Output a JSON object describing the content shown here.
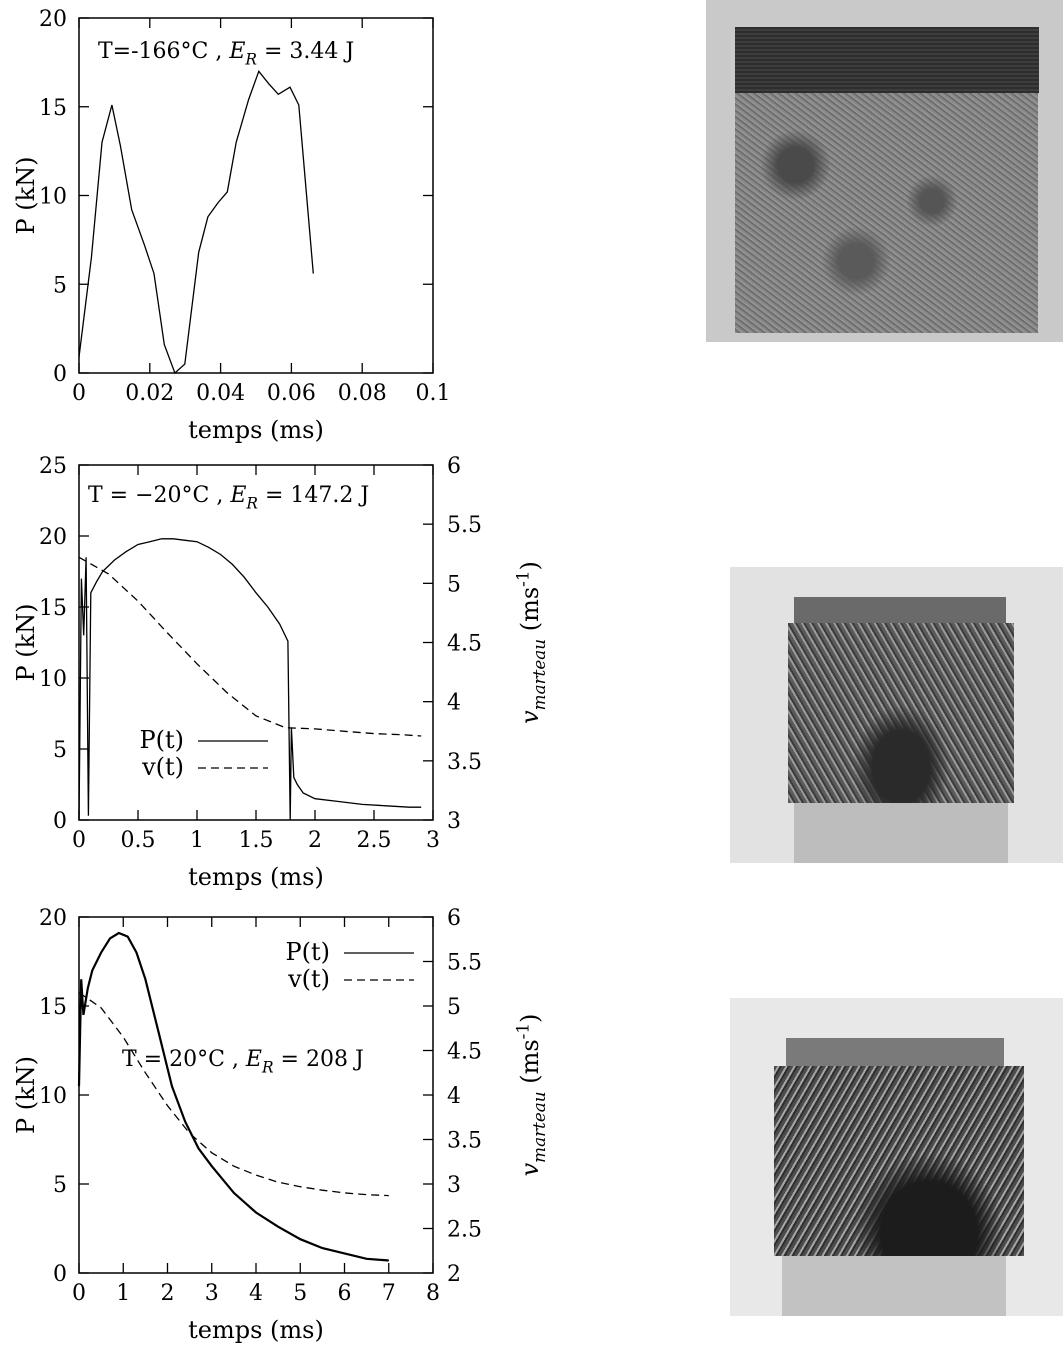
{
  "chart_data": [
    {
      "type": "line",
      "annotation": "T=-166°C , E_R = 3.44 J",
      "xlabel": "temps (ms)",
      "ylabel": "P (kN)",
      "y2label": "",
      "xlim": [
        0,
        0.1
      ],
      "ylim": [
        0,
        20
      ],
      "xticks": [
        "0",
        "0.02",
        "0.04",
        "0.06",
        "0.08",
        "0.1"
      ],
      "yticks": [
        "0",
        "5",
        "10",
        "15",
        "20"
      ],
      "series": [
        {
          "axis": "left",
          "style": "solid",
          "x": [
            0,
            0.0035,
            0.0065,
            0.0093,
            0.0117,
            0.0149,
            0.0185,
            0.0212,
            0.0241,
            0.0271,
            0.0299,
            0.0338,
            0.0364,
            0.0393,
            0.0419,
            0.0444,
            0.0479,
            0.0508,
            0.0536,
            0.0563,
            0.0596,
            0.0621,
            0.0662
          ],
          "y": [
            0.9,
            6.5,
            13.0,
            15.1,
            12.8,
            9.2,
            7.2,
            5.6,
            1.6,
            0.0,
            0.5,
            6.8,
            8.8,
            9.6,
            10.2,
            13.0,
            15.4,
            17.0,
            16.3,
            15.7,
            16.1,
            15.1,
            5.6
          ]
        }
      ]
    },
    {
      "type": "line",
      "annotation": "T = −20°C , E_R = 147.2 J",
      "xlabel": "temps (ms)",
      "ylabel": "P (kN)",
      "y2label": "v_marteau (ms^-1)",
      "xlim": [
        0,
        3
      ],
      "ylim": [
        0,
        25
      ],
      "y2lim": [
        3,
        6
      ],
      "xticks": [
        "0",
        "0.5",
        "1",
        "1.5",
        "2",
        "2.5",
        "3"
      ],
      "yticks": [
        "0",
        "5",
        "10",
        "15",
        "20",
        "25"
      ],
      "y2ticks": [
        "3",
        "3.5",
        "4",
        "4.5",
        "5",
        "5.5",
        "6"
      ],
      "legend": "bottom-left",
      "series": [
        {
          "name": "P(t)",
          "axis": "left",
          "style": "solid",
          "x": [
            0,
            0.02,
            0.04,
            0.06,
            0.08,
            0.1,
            0.15,
            0.2,
            0.3,
            0.4,
            0.5,
            0.6,
            0.7,
            0.8,
            0.9,
            1.0,
            1.1,
            1.2,
            1.3,
            1.4,
            1.5,
            1.6,
            1.7,
            1.77,
            1.79,
            1.8,
            1.82,
            1.85,
            1.9,
            2.0,
            2.2,
            2.4,
            2.6,
            2.8,
            2.9
          ],
          "y": [
            0.0,
            17.0,
            13.0,
            18.5,
            0.3,
            16.0,
            16.8,
            17.5,
            18.3,
            18.9,
            19.4,
            19.6,
            19.8,
            19.8,
            19.7,
            19.6,
            19.2,
            18.7,
            18.0,
            17.1,
            16.0,
            15.0,
            13.8,
            12.6,
            0.0,
            6.5,
            3.0,
            2.5,
            1.9,
            1.5,
            1.3,
            1.1,
            1.0,
            0.9,
            0.9
          ]
        },
        {
          "name": "v(t)",
          "axis": "right",
          "style": "dashed",
          "x": [
            0,
            0.25,
            0.5,
            0.75,
            1.0,
            1.25,
            1.5,
            1.75,
            2.0,
            2.25,
            2.5,
            2.75,
            2.9
          ],
          "y": [
            5.22,
            5.08,
            4.85,
            4.58,
            4.32,
            4.08,
            3.88,
            3.78,
            3.77,
            3.75,
            3.73,
            3.72,
            3.71
          ]
        }
      ]
    },
    {
      "type": "line",
      "annotation": "T = 20°C , E_R = 208 J",
      "xlabel": "temps (ms)",
      "ylabel": "P (kN)",
      "y2label": "v_marteau (ms^-1)",
      "xlim": [
        0,
        8
      ],
      "ylim": [
        0,
        20
      ],
      "y2lim": [
        2,
        6
      ],
      "xticks": [
        "0",
        "1",
        "2",
        "3",
        "4",
        "5",
        "6",
        "7",
        "8"
      ],
      "yticks": [
        "0",
        "5",
        "10",
        "15",
        "20"
      ],
      "y2ticks": [
        "2",
        "2.5",
        "3",
        "3.5",
        "4",
        "4.5",
        "5",
        "5.5",
        "6"
      ],
      "legend": "top-right",
      "series": [
        {
          "name": "P(t)",
          "axis": "left",
          "style": "solid",
          "x": [
            0,
            0.05,
            0.1,
            0.2,
            0.3,
            0.5,
            0.7,
            0.9,
            1.1,
            1.3,
            1.5,
            1.8,
            2.1,
            2.4,
            2.7,
            3.0,
            3.5,
            4.0,
            4.5,
            5.0,
            5.5,
            6.0,
            6.5,
            7.0
          ],
          "y": [
            10.5,
            16.5,
            14.5,
            16.0,
            17.0,
            18.0,
            18.8,
            19.1,
            18.9,
            18.0,
            16.5,
            13.5,
            10.5,
            8.5,
            7.0,
            6.0,
            4.5,
            3.4,
            2.6,
            1.9,
            1.4,
            1.1,
            0.8,
            0.7
          ]
        },
        {
          "name": "v(t)",
          "axis": "right",
          "style": "dashed",
          "x": [
            0,
            0.5,
            1.0,
            1.5,
            2.0,
            2.5,
            3.0,
            3.5,
            4.0,
            4.5,
            5.0,
            5.5,
            6.0,
            6.5,
            7.0
          ],
          "y": [
            5.15,
            4.98,
            4.65,
            4.25,
            3.88,
            3.57,
            3.35,
            3.2,
            3.1,
            3.02,
            2.97,
            2.93,
            2.9,
            2.88,
            2.87
          ]
        }
      ]
    }
  ],
  "photos": [
    {
      "subject": "brittle-fracture-surface"
    },
    {
      "subject": "mixed-fracture-surface"
    },
    {
      "subject": "ductile-fracture-surface"
    }
  ]
}
